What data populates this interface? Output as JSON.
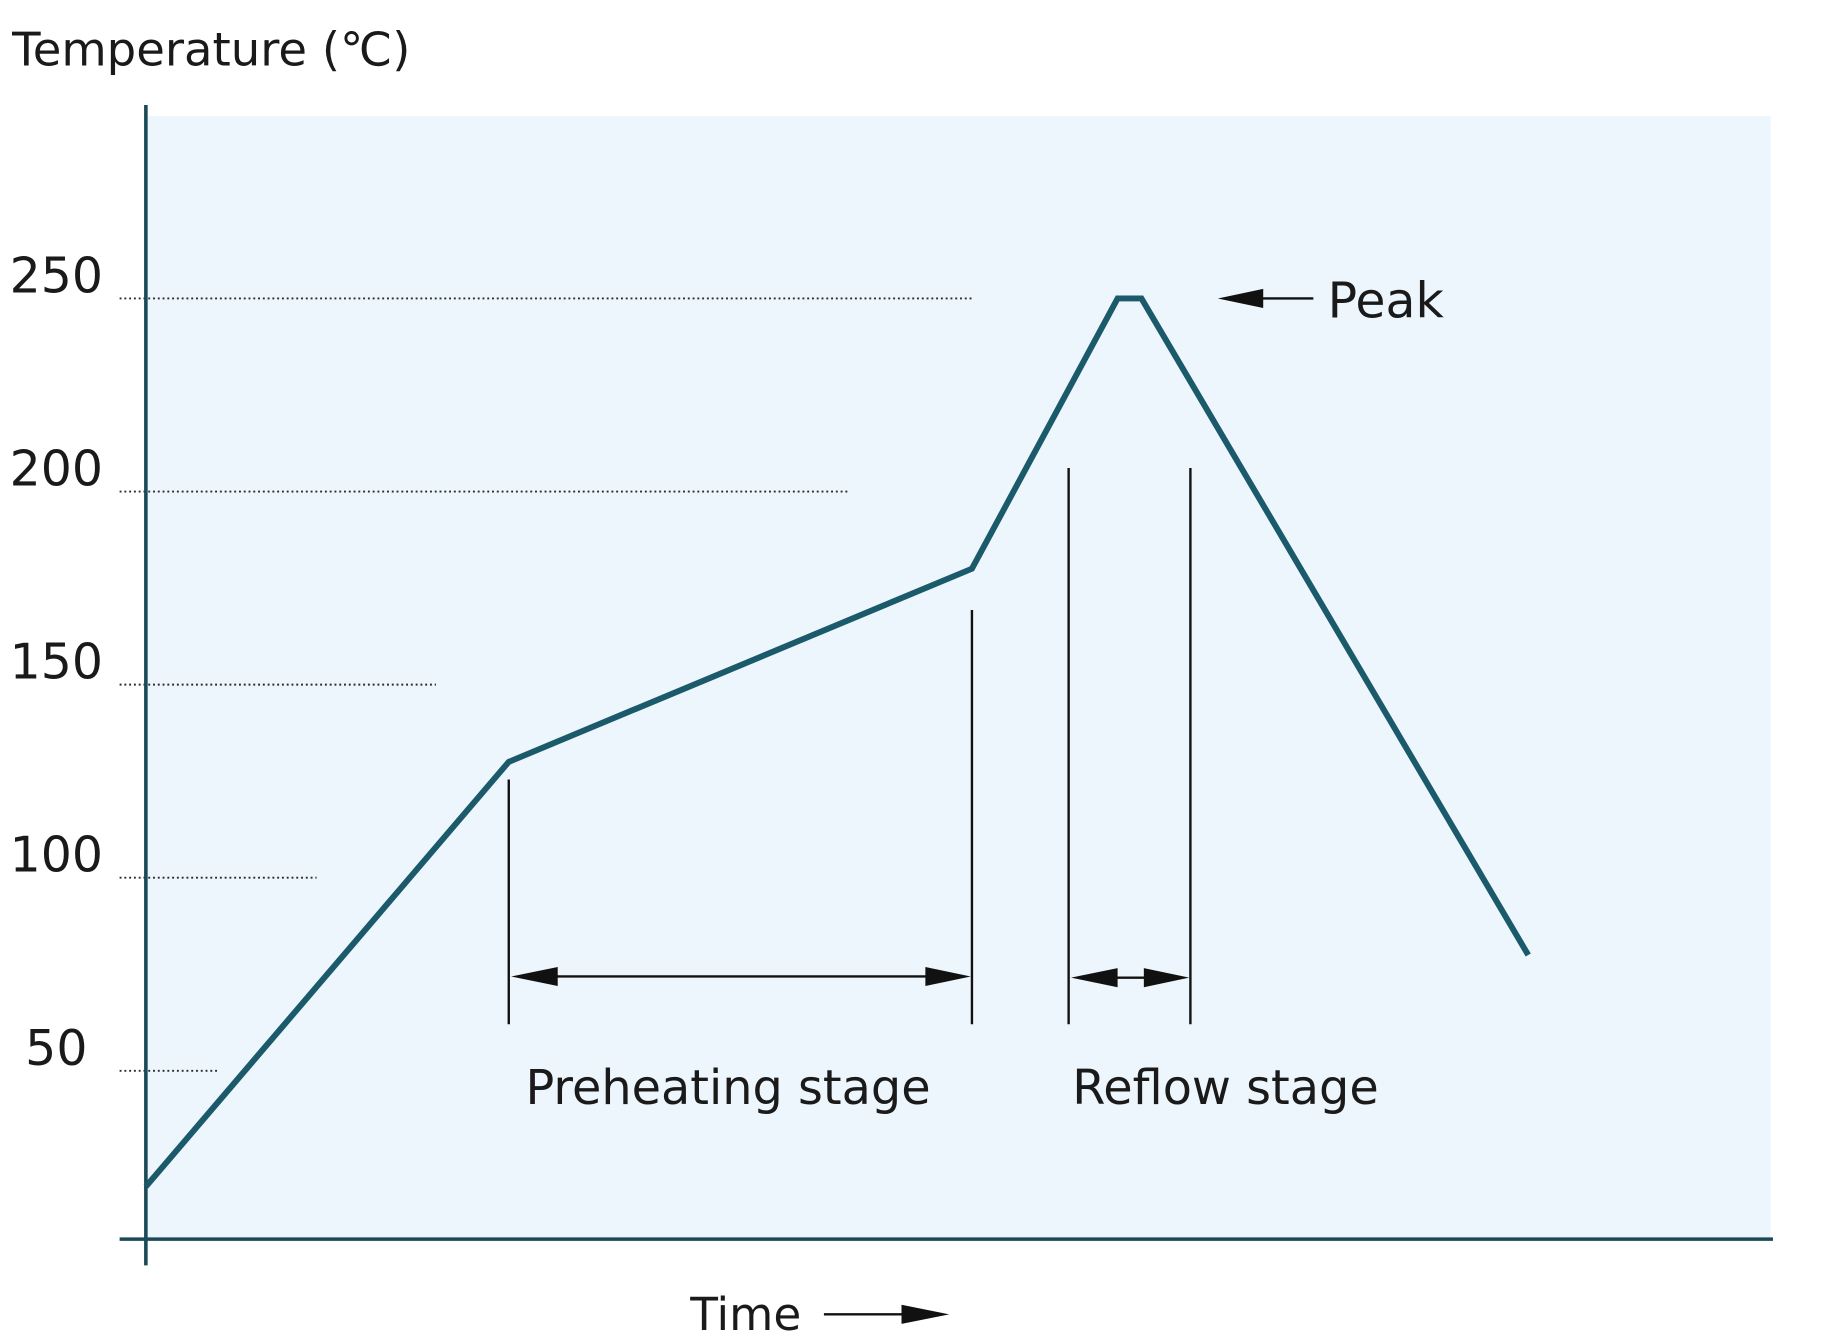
{
  "chart_data": {
    "type": "line",
    "xlabel": "Time",
    "ylabel": "Temperature (℃)",
    "yticks": [
      50,
      100,
      150,
      200,
      250
    ],
    "ylim": [
      5,
      300
    ],
    "grid": true,
    "legend": "none",
    "series": [
      {
        "values": [
          20,
          130,
          180,
          250,
          250,
          80
        ]
      }
    ],
    "annotations": [
      "Peak",
      "Preheating stage",
      "Reflow stage"
    ]
  },
  "colors": {
    "plot_background": "#edf6fc",
    "profile_line": "#1b5a6b",
    "axis": "#1a4a57",
    "annotation": "#111111"
  },
  "icons": {
    "peak_pointer": "arrow-left-icon",
    "time_direction": "arrow-right-icon",
    "stage_span": "double-arrow-icon"
  }
}
